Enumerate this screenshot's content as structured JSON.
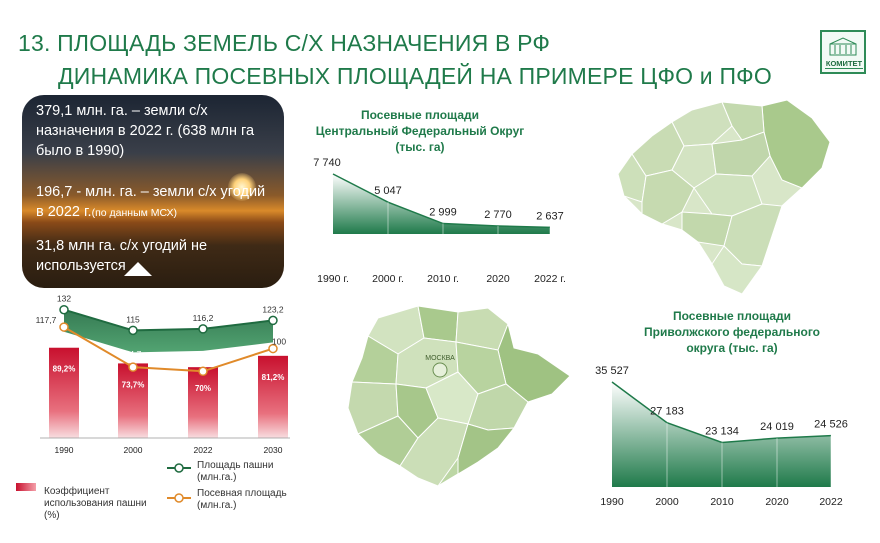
{
  "header": {
    "line1": "13. ПЛОЩАДЬ ЗЕМЕЛЬ С/Х НАЗНАЧЕНИЯ В РФ",
    "line2": "ДИНАМИКА  ПОСЕВНЫХ ПЛОЩАДЕЙ НА ПРИМЕРЕ ЦФО и ПФО"
  },
  "logo": {
    "text": "КОМИТЕТ"
  },
  "photo_text": {
    "p1": "379,1 млн. га. – земли с/х назначения в 2022 г. (638 млн га было в 1990)",
    "p2_main": "196,7 - млн. га. – земли с/х угодий в 2022 г.",
    "p2_small": "(по данным МСХ)",
    "p3": "31,8 млн га. с/х угодий не используется"
  },
  "maps": {
    "moscow_label": "МОСКВА"
  },
  "legend": {
    "arable": "Площадь пашни (млн.га.)",
    "sown": "Посевная площадь (млн.га.)",
    "coef": "Коэффициент использования пашни (%)"
  },
  "colors": {
    "accent": "#1f7a4a",
    "bar_red": "#c8102e",
    "arable_line": "#1f6b40",
    "sown_line": "#e08a2a"
  },
  "chart_data": [
    {
      "type": "bar+line",
      "categories": [
        "1990",
        "2000",
        "2022",
        "2030"
      ],
      "bars": {
        "name": "Коэффициент использования пашни (%)",
        "values": [
          89.2,
          73.7,
          70,
          81.2
        ],
        "labels": [
          "89,2%",
          "73,7%",
          "70%",
          "81,2%"
        ]
      },
      "series": [
        {
          "name": "Площадь пашни (млн.га.)",
          "values": [
            132,
            115,
            116.2,
            123.2
          ],
          "labels": [
            "132",
            "115",
            "116,2",
            "123,2"
          ]
        },
        {
          "name": "Посевная площадь (млн.га.)",
          "values": [
            117.7,
            84.7,
            81.3,
            100
          ],
          "labels": [
            "117,7",
            "84,7",
            "81,3",
            "100"
          ]
        }
      ]
    },
    {
      "type": "area",
      "title": "Посевные площади Центральный Федеральный Округ (тыс. га)",
      "title_lines": [
        "Посевные площади",
        "Центральный Федеральный Округ",
        "(тыс. га)"
      ],
      "categories": [
        "1990 г.",
        "2000 г.",
        "2010 г.",
        "2020",
        "2022 г."
      ],
      "values": [
        7740,
        5047,
        2999,
        2770,
        2637
      ],
      "labels": [
        "7 740",
        "5 047",
        "2 999",
        "2 770",
        "2 637"
      ]
    },
    {
      "type": "area",
      "title": "Посевные площади Приволжского федерального округа (тыс. га)",
      "title_lines": [
        "Посевные площади",
        "Приволжского федерального",
        "округа (тыс. га)"
      ],
      "categories": [
        "1990",
        "2000",
        "2010",
        "2020",
        "2022"
      ],
      "values": [
        35527,
        27183,
        23134,
        24019,
        24526
      ],
      "labels": [
        "35 527",
        "27 183",
        "23 134",
        "24 019",
        "24 526"
      ]
    }
  ]
}
